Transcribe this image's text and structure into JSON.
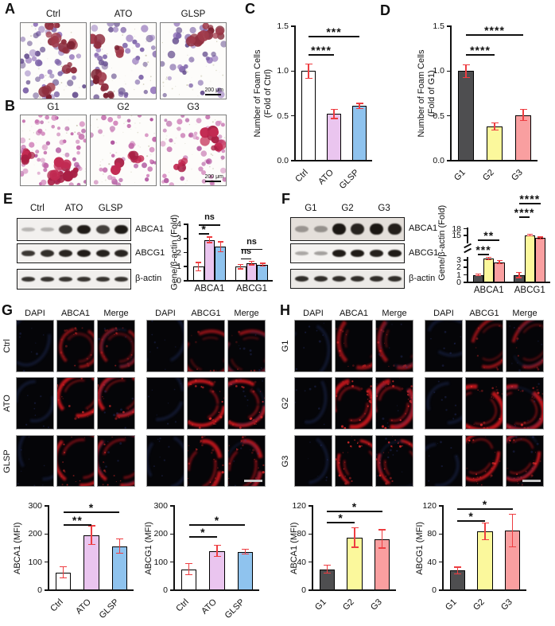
{
  "colors": {
    "error_bar": "#ee3d41",
    "axis": "#111111",
    "ctrl_fill": "#ffffff",
    "ato_fill": "#eac5ef",
    "glsp_fill": "#8fc3ee",
    "g1_fill": "#4e4e50",
    "g2_fill": "#fbf89c",
    "g3_fill": "#f99fa0",
    "if_red": "#c8161d",
    "if_blue": "#223066",
    "scale_bar_gray": "#c9c9c9"
  },
  "panels": {
    "a": {
      "letter": "A",
      "image_labels": [
        "Ctrl",
        "ATO",
        "GLSP"
      ],
      "scale_bar_text": "200 μm"
    },
    "b": {
      "letter": "B",
      "image_labels": [
        "G1",
        "G2",
        "G3"
      ],
      "scale_bar_text": "200 μm"
    },
    "c": {
      "letter": "C"
    },
    "d": {
      "letter": "D"
    },
    "e": {
      "letter": "E",
      "lane_labels": [
        "Ctrl",
        "ATO",
        "GLSP"
      ],
      "band_rows": [
        {
          "name": "ABCA1",
          "intensities": [
            0.1,
            0.12,
            0.8,
            0.95,
            0.75,
            0.95
          ]
        },
        {
          "name": "ABCG1",
          "intensities": [
            0.8,
            0.85,
            0.9,
            0.95,
            0.92,
            0.9
          ]
        },
        {
          "name": "β-actin",
          "intensities": [
            0.82,
            0.82,
            0.82,
            0.82,
            0.82,
            0.82
          ]
        }
      ]
    },
    "f": {
      "letter": "F",
      "lane_labels": [
        "G1",
        "G2",
        "G3"
      ],
      "band_rows": [
        {
          "name": "ABCA1",
          "intensities": [
            0.22,
            0.25,
            0.97,
            0.9,
            0.97,
            0.93
          ]
        },
        {
          "name": "ABCG1",
          "intensities": [
            0.18,
            0.22,
            0.95,
            0.95,
            0.92,
            0.95
          ]
        },
        {
          "name": "β-actin",
          "intensities": [
            0.85,
            0.85,
            0.85,
            0.85,
            0.85,
            0.85
          ]
        }
      ]
    },
    "g": {
      "letter": "G",
      "column_labels": [
        "DAPI",
        "ABCA1",
        "Merge",
        "DAPI",
        "ABCG1",
        "Merge"
      ],
      "row_labels": [
        "Ctrl",
        "ATO",
        "GLSP"
      ],
      "row_signal": [
        0.45,
        1.0,
        0.9
      ]
    },
    "h": {
      "letter": "H",
      "column_labels": [
        "DAPI",
        "ABCA1",
        "Merge",
        "DAPI",
        "ABCG1",
        "Merge"
      ],
      "row_labels": [
        "G1",
        "G2",
        "G3"
      ],
      "row_signal": [
        0.5,
        0.95,
        1.0
      ]
    }
  },
  "chart_data": [
    {
      "id": "c",
      "type": "bar",
      "categories": [
        "Ctrl",
        "ATO",
        "GLSP"
      ],
      "values": [
        1.0,
        0.52,
        0.61
      ],
      "errors": [
        0.08,
        0.05,
        0.03
      ],
      "bar_colors": [
        "ctrl_fill",
        "ato_fill",
        "glsp_fill"
      ],
      "ylabel": "Number of Foam Cells\n(Fold of Ctrl)",
      "ylim": [
        0,
        1.5
      ],
      "yticks": [
        0,
        0.5,
        1,
        1.5
      ],
      "ytick_labels": [
        "0.0",
        "0.5",
        "1.0",
        "1.5"
      ],
      "sig": [
        {
          "a": 0,
          "b": 1,
          "label": "****",
          "yfrac": 0.79
        },
        {
          "a": 0,
          "b": 2,
          "label": "***",
          "yfrac": 0.93
        }
      ]
    },
    {
      "id": "d",
      "type": "bar",
      "categories": [
        "G1",
        "G2",
        "G3"
      ],
      "values": [
        1.0,
        0.38,
        0.51
      ],
      "errors": [
        0.07,
        0.04,
        0.06
      ],
      "bar_colors": [
        "g1_fill",
        "g2_fill",
        "g3_fill"
      ],
      "ylabel": "Number of Foam Cells\n(Fold of G1)",
      "ylim": [
        0,
        1.5
      ],
      "yticks": [
        0,
        0.5,
        1,
        1.5
      ],
      "ytick_labels": [
        "0.0",
        "0.5",
        "1.0",
        "1.5"
      ],
      "sig": [
        {
          "a": 0,
          "b": 1,
          "label": "****",
          "yfrac": 0.79
        },
        {
          "a": 0,
          "b": 2,
          "label": "****",
          "yfrac": 0.94
        }
      ]
    },
    {
      "id": "e",
      "type": "grouped_bar",
      "categories": [
        "ABCA1",
        "ABCG1"
      ],
      "series": [
        {
          "name": "Ctrl",
          "color": "ctrl_fill",
          "values": [
            1.0,
            1.0
          ],
          "errors": [
            0.3,
            0.15
          ]
        },
        {
          "name": "ATO",
          "color": "ato_fill",
          "values": [
            2.9,
            1.25
          ],
          "errors": [
            0.2,
            0.12
          ]
        },
        {
          "name": "GLSP",
          "color": "glsp_fill",
          "values": [
            2.4,
            1.15
          ],
          "errors": [
            0.35,
            0.1
          ]
        }
      ],
      "ylabel": "Gene/β-actin (Fold)",
      "ylim": [
        0,
        4
      ],
      "yticks": [
        0,
        1,
        2,
        3,
        4
      ],
      "ytick_labels": [
        "0",
        "1",
        "2",
        "3",
        "4"
      ],
      "sig": [
        {
          "group": 0,
          "a": 0,
          "b": 1,
          "label": "*",
          "yfrac": 0.84
        },
        {
          "group": 0,
          "a": 0,
          "b": 2,
          "label": "ns",
          "yfrac": 1.0
        },
        {
          "group": 1,
          "a": 0,
          "b": 1,
          "label": "ns",
          "yfrac": 0.4
        },
        {
          "group": 1,
          "a": 0,
          "b": 2,
          "label": "ns",
          "yfrac": 0.57
        }
      ]
    },
    {
      "id": "f",
      "type": "grouped_bar",
      "categories": [
        "ABCA1",
        "ABCG1"
      ],
      "series": [
        {
          "name": "G1",
          "color": "g1_fill",
          "values": [
            1.0,
            1.0
          ],
          "errors": [
            0.12,
            0.35
          ]
        },
        {
          "name": "G2",
          "color": "g2_fill",
          "values": [
            3.2,
            15.2
          ],
          "errors": [
            0.15,
            0.4
          ]
        },
        {
          "name": "G3",
          "color": "g3_fill",
          "values": [
            2.7,
            14.0
          ],
          "errors": [
            0.2,
            0.4
          ]
        }
      ],
      "ylabel": "Gene/β-actin (Fold)",
      "axis_break": {
        "lower": [
          0,
          3.5
        ],
        "upper": [
          13,
          18
        ],
        "lower_frac": 0.33,
        "gap_frac": 0.2,
        "upper_frac": 0.145,
        "lower_ticks": [
          0,
          1,
          2,
          3
        ],
        "upper_ticks": [
          15,
          18
        ]
      },
      "sig": [
        {
          "group": 0,
          "a": 0,
          "b": 1,
          "label": "***",
          "yfrac": 0.36
        },
        {
          "group": 0,
          "a": 0,
          "b": 2,
          "label": "**",
          "yfrac": 0.54
        },
        {
          "group": 1,
          "a": 0,
          "b": 1,
          "label": "****",
          "yfrac": 0.83
        },
        {
          "group": 1,
          "a": 0,
          "b": 2,
          "label": "****",
          "yfrac": 1.0
        }
      ]
    },
    {
      "id": "g1",
      "type": "bar",
      "categories": [
        "Ctrl",
        "ATO",
        "GLSP"
      ],
      "values": [
        63,
        196,
        157
      ],
      "errors": [
        20,
        33,
        26
      ],
      "bar_colors": [
        "ctrl_fill",
        "ato_fill",
        "glsp_fill"
      ],
      "ylabel": "ABCA1 (MFI)",
      "ylim": [
        0,
        300
      ],
      "yticks": [
        0,
        100,
        200,
        300
      ],
      "ytick_labels": [
        "0",
        "100",
        "200",
        "300"
      ],
      "sig": [
        {
          "a": 0,
          "b": 1,
          "label": "**",
          "yfrac": 0.78
        },
        {
          "a": 0,
          "b": 2,
          "label": "*",
          "yfrac": 0.93
        }
      ]
    },
    {
      "id": "g2",
      "type": "bar",
      "categories": [
        "Ctrl",
        "ATO",
        "GLSP"
      ],
      "values": [
        75,
        140,
        137
      ],
      "errors": [
        20,
        20,
        8
      ],
      "bar_colors": [
        "ctrl_fill",
        "ato_fill",
        "glsp_fill"
      ],
      "ylabel": "ABCG1 (MFI)",
      "ylim": [
        0,
        300
      ],
      "yticks": [
        0,
        100,
        200,
        300
      ],
      "ytick_labels": [
        "0",
        "100",
        "200",
        "300"
      ],
      "sig": [
        {
          "a": 0,
          "b": 1,
          "label": "*",
          "yfrac": 0.64
        },
        {
          "a": 0,
          "b": 2,
          "label": "*",
          "yfrac": 0.78
        }
      ]
    },
    {
      "id": "h1",
      "type": "bar",
      "categories": [
        "G1",
        "G2",
        "G3"
      ],
      "values": [
        30,
        75,
        73
      ],
      "errors": [
        6,
        14,
        13
      ],
      "bar_colors": [
        "g1_fill",
        "g2_fill",
        "g3_fill"
      ],
      "ylabel": "ABCA1 (MFI)",
      "ylim": [
        0,
        120
      ],
      "yticks": [
        0,
        40,
        80,
        120
      ],
      "ytick_labels": [
        "0",
        "40",
        "80",
        "120"
      ],
      "sig": [
        {
          "a": 0,
          "b": 1,
          "label": "*",
          "yfrac": 0.81
        },
        {
          "a": 0,
          "b": 2,
          "label": "*",
          "yfrac": 0.94
        }
      ]
    },
    {
      "id": "h2",
      "type": "bar",
      "categories": [
        "G1",
        "G2",
        "G3"
      ],
      "values": [
        28,
        84,
        85
      ],
      "errors": [
        5,
        12,
        23
      ],
      "bar_colors": [
        "g1_fill",
        "g2_fill",
        "g3_fill"
      ],
      "ylabel": "ABCG1 (MFI)",
      "ylim": [
        0,
        120
      ],
      "yticks": [
        0,
        40,
        80,
        120
      ],
      "ytick_labels": [
        "0",
        "40",
        "80",
        "120"
      ],
      "sig": [
        {
          "a": 0,
          "b": 1,
          "label": "*",
          "yfrac": 0.83
        },
        {
          "a": 0,
          "b": 2,
          "label": "*",
          "yfrac": 0.97
        }
      ]
    }
  ]
}
